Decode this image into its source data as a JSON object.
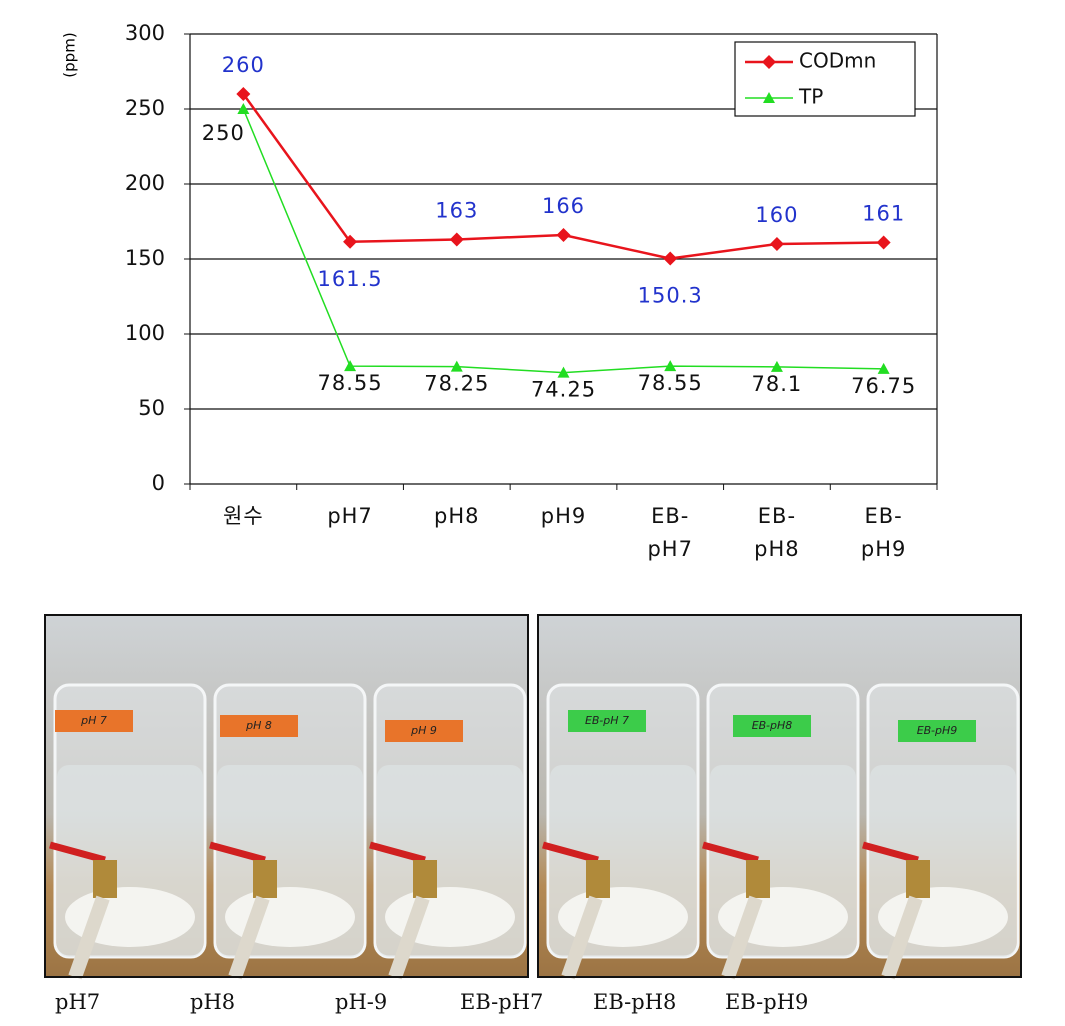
{
  "chart_data": {
    "type": "line",
    "y_label": "(ppm)",
    "categories": [
      "원수",
      "pH7",
      "pH8",
      "pH9",
      "EB-\npH7",
      "EB-\npH8",
      "EB-\npH9"
    ],
    "series": [
      {
        "name": "CODmn",
        "color": "#e8141c",
        "marker": "diamond",
        "label_color": "#2233cc",
        "values": [
          260,
          161.5,
          163,
          166,
          150.3,
          160,
          161
        ]
      },
      {
        "name": "TP",
        "color": "#22dd22",
        "marker": "triangle",
        "label_color": "#111111",
        "values": [
          250,
          78.55,
          78.25,
          74.25,
          78.55,
          78.1,
          76.75
        ]
      }
    ],
    "ylim": [
      0,
      300
    ],
    "yticks": [
      0,
      50,
      100,
      150,
      200,
      250,
      300
    ],
    "grid": true,
    "legend": "upper right"
  },
  "photos": [
    {
      "tape_color": "#e8742a",
      "labels": [
        "pH 7",
        "pH 8",
        "pH 9"
      ]
    },
    {
      "tape_color": "#3ccc4a",
      "labels": [
        "EB-pH 7",
        "EB-pH8",
        "EB-pH9"
      ]
    }
  ],
  "captions": [
    "pH7",
    "pH8",
    "pH-9",
    "EB-pH7",
    "EB-pH8",
    "EB-pH9"
  ]
}
